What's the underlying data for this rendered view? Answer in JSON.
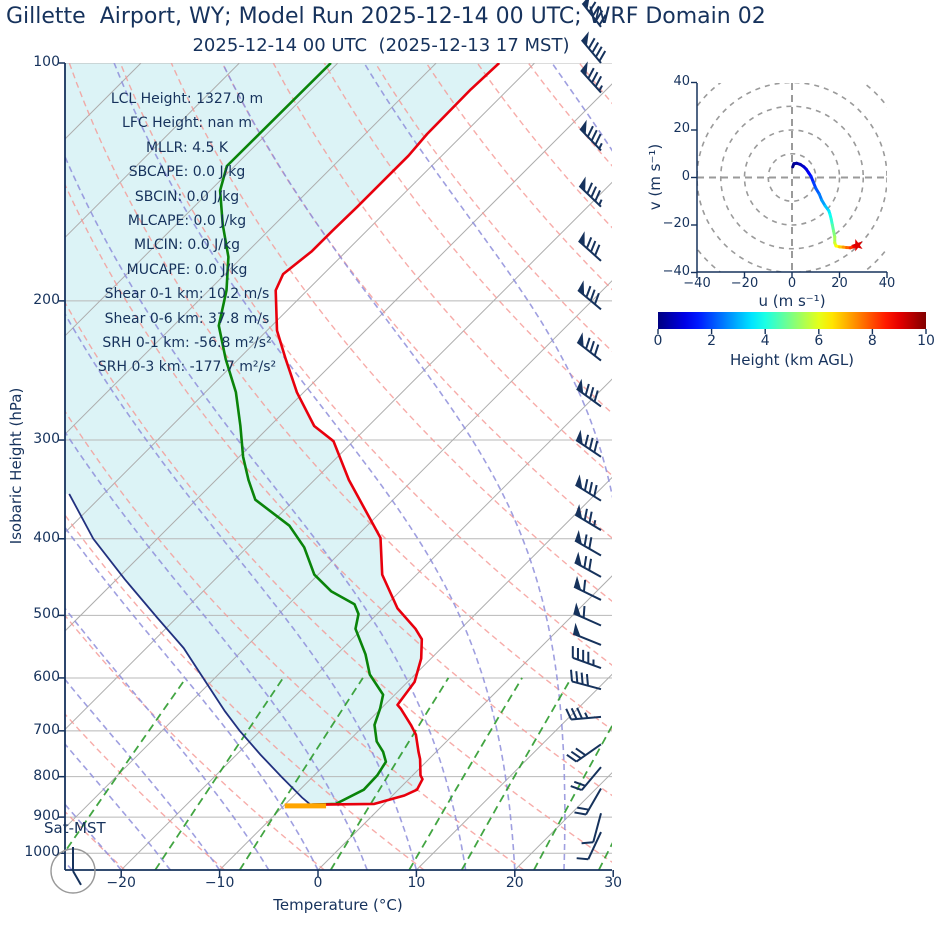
{
  "title": "Gillette  Airport, WY; Model Run 2025-12-14 00 UTC; WRF Domain 02",
  "subtitle": "2025-12-14 00 UTC  (2025-12-13 17 MST)",
  "colors": {
    "text_axis": "#16325c",
    "temperature_line": "#e8000d",
    "dewpoint_line": "#0a840a",
    "parcel_line": "#22317f",
    "lcl_bar": "#ffa500",
    "cape_fill": "#dcf3f6",
    "isotherm": "#adadad",
    "isobar": "#b8b8b8",
    "dry_adiabat": "#f59793",
    "moist_adiabat": "#8e8edb",
    "mixing_line": "#2e9b2e",
    "hodo_ring": "#9a9a9a",
    "hodo_marker": "#dd0000"
  },
  "skewt": {
    "xlabel": "Temperature (°C)",
    "ylabel": "Isobaric Height (hPa)",
    "corner_label": "Sat-MST",
    "x_ticks": [
      -20,
      -10,
      0,
      10,
      20,
      30
    ],
    "p_ticks": [
      100,
      200,
      300,
      400,
      500,
      600,
      700,
      800,
      900,
      1000
    ],
    "annotations": [
      "LCL Height: 1327.0 m",
      "LFC Height: nan m",
      "MLLR: 4.5 K",
      "SBCAPE: 0.0 J/kg",
      "SBCIN: 0.0 J/kg",
      "MLCAPE: 0.0 J/kg",
      "MLCIN: 0.0 J/kg",
      "MUCAPE: 0.0 J/kg",
      "Shear 0-1 km: 10.2 m/s",
      "Shear 0-6 km: 37.8 m/s",
      "SRH 0-1 km: -56.8 m²/s²",
      "SRH 0-3 km: -177.7 m²/s²"
    ]
  },
  "hodograph": {
    "xlabel": "u (m s⁻¹)",
    "ylabel": "v (m s⁻¹)",
    "x_ticks": [
      -40,
      -20,
      0,
      20,
      40
    ],
    "y_ticks": [
      40,
      20,
      0,
      -20,
      -40
    ],
    "ring_radii": [
      10,
      20,
      30,
      40,
      50,
      60
    ]
  },
  "colorbar": {
    "label": "Height (km AGL)",
    "ticks": [
      0,
      2,
      4,
      6,
      8,
      10
    ],
    "range_km": [
      0,
      10
    ],
    "colormap": "jet"
  },
  "chart_data": {
    "type": "line",
    "subtype": "skew-t-log-p",
    "pressure_range_hPa": [
      100,
      1050
    ],
    "temperature_axis_c": [
      -25.7,
      30
    ],
    "temperature_profile": [
      [
        100,
        -63.6
      ],
      [
        108,
        -63.8
      ],
      [
        123,
        -63.7
      ],
      [
        131,
        -63.4
      ],
      [
        142,
        -63.4
      ],
      [
        152,
        -63.4
      ],
      [
        163,
        -63.5
      ],
      [
        173,
        -63.5
      ],
      [
        185,
        -64.1
      ],
      [
        194,
        -63.2
      ],
      [
        218,
        -59.0
      ],
      [
        237,
        -55.2
      ],
      [
        261,
        -50.7
      ],
      [
        288,
        -45.5
      ],
      [
        301,
        -42.0
      ],
      [
        337,
        -36.5
      ],
      [
        399,
        -27.4
      ],
      [
        444,
        -23.5
      ],
      [
        490,
        -18.5
      ],
      [
        520,
        -14.6
      ],
      [
        536,
        -12.9
      ],
      [
        567,
        -11.0
      ],
      [
        607,
        -9.3
      ],
      [
        649,
        -8.7
      ],
      [
        656,
        -8.0
      ],
      [
        688,
        -5.3
      ],
      [
        708,
        -3.8
      ],
      [
        744,
        -1.8
      ],
      [
        760,
        -0.9
      ],
      [
        797,
        0.8
      ],
      [
        806,
        1.4
      ],
      [
        831,
        1.9
      ],
      [
        845,
        1.2
      ],
      [
        866,
        -1.0
      ],
      [
        868,
        -7.2
      ]
    ],
    "dewpoint_profile": [
      [
        100,
        -80.7
      ],
      [
        135,
        -80.8
      ],
      [
        145,
        -79.0
      ],
      [
        160,
        -75.3
      ],
      [
        176,
        -71.4
      ],
      [
        194,
        -68.2
      ],
      [
        215,
        -65.4
      ],
      [
        237,
        -61.3
      ],
      [
        261,
        -56.9
      ],
      [
        288,
        -53.0
      ],
      [
        315,
        -49.6
      ],
      [
        337,
        -46.7
      ],
      [
        357,
        -44.0
      ],
      [
        385,
        -37.9
      ],
      [
        410,
        -34.2
      ],
      [
        444,
        -30.4
      ],
      [
        466,
        -27.0
      ],
      [
        484,
        -23.3
      ],
      [
        498,
        -21.9
      ],
      [
        520,
        -20.7
      ],
      [
        560,
        -17.1
      ],
      [
        594,
        -14.6
      ],
      [
        630,
        -11.2
      ],
      [
        656,
        -10.1
      ],
      [
        688,
        -9.0
      ],
      [
        722,
        -7.1
      ],
      [
        744,
        -5.4
      ],
      [
        766,
        -4.1
      ],
      [
        797,
        -3.6
      ],
      [
        831,
        -3.5
      ],
      [
        866,
        -4.9
      ],
      [
        868,
        -7.3
      ]
    ],
    "parcel_profile": [
      [
        868,
        -7.4
      ],
      [
        850,
        -9.0
      ],
      [
        800,
        -13.2
      ],
      [
        750,
        -17.6
      ],
      [
        700,
        -22.1
      ],
      [
        661,
        -25.6
      ],
      [
        600,
        -31.2
      ],
      [
        550,
        -36.2
      ],
      [
        504,
        -41.9
      ],
      [
        450,
        -49.2
      ],
      [
        400,
        -56.5
      ],
      [
        351,
        -63.5
      ]
    ],
    "lcl_marker": {
      "pressure": 871,
      "t_min": -9.9,
      "t_max": -5.7
    },
    "wind_barbs": [
      [
        90,
        45,
        322
      ],
      [
        100,
        45,
        320
      ],
      [
        109,
        43,
        318
      ],
      [
        129,
        43,
        316
      ],
      [
        152,
        43,
        314
      ],
      [
        178,
        40,
        312
      ],
      [
        205,
        40,
        310
      ],
      [
        238,
        40,
        308
      ],
      [
        272,
        40,
        306
      ],
      [
        315,
        40,
        304
      ],
      [
        358,
        40,
        302
      ],
      [
        390,
        38,
        301
      ],
      [
        420,
        36,
        300
      ],
      [
        447,
        35,
        299
      ],
      [
        478,
        32,
        296
      ],
      [
        515,
        30,
        294
      ],
      [
        545,
        27,
        292
      ],
      [
        583,
        24,
        290
      ],
      [
        620,
        20,
        285
      ],
      [
        672,
        18,
        265
      ],
      [
        728,
        15,
        235
      ],
      [
        778,
        11,
        220
      ],
      [
        828,
        10,
        210
      ],
      [
        890,
        7,
        195
      ],
      [
        940,
        6,
        205
      ]
    ],
    "background": {
      "isotherms_c": {
        "start": -110,
        "end": 30,
        "step": 10
      },
      "dry_adiabats_K": {
        "start": 240,
        "end": 440,
        "step": 10
      },
      "moist_adiabats_c": {
        "start": -60,
        "end": 45,
        "step": 5
      },
      "mixing_ratio_g_kg": [
        0.4,
        1,
        2,
        4,
        7,
        10,
        16,
        24,
        32
      ],
      "mixing_top_hPa": 600
    },
    "hodograph_trace": {
      "u": [
        0.3,
        0.8,
        2,
        3.5,
        5,
        6,
        7,
        8,
        9,
        10,
        11.5,
        12.5,
        14,
        15.5,
        16,
        16.5,
        17,
        17.5,
        18,
        18,
        18.5,
        20,
        21.5,
        23,
        24.5,
        26,
        27
      ],
      "v": [
        4.5,
        5.8,
        6,
        5.5,
        4.5,
        3.5,
        2,
        0.5,
        -2,
        -4.5,
        -7,
        -9.5,
        -12,
        -14,
        -15.5,
        -17.5,
        -20,
        -22.5,
        -25,
        -27.5,
        -28.8,
        -29.2,
        -29.3,
        -29.5,
        -29.6,
        -29.2,
        -28.7
      ],
      "height_km": [
        0,
        0.15,
        0.3,
        0.5,
        0.7,
        0.9,
        1.1,
        1.4,
        1.7,
        2.0,
        2.3,
        2.6,
        3.0,
        3.4,
        3.7,
        4.0,
        4.4,
        4.8,
        5.2,
        5.6,
        6.0,
        6.5,
        7.0,
        7.5,
        8.0,
        8.5,
        9.0
      ],
      "end_marker": {
        "u": 27.5,
        "v": -28.5
      }
    },
    "clock": {
      "day_tz": "Sat-MST",
      "hour": 17,
      "minute": 0
    }
  }
}
